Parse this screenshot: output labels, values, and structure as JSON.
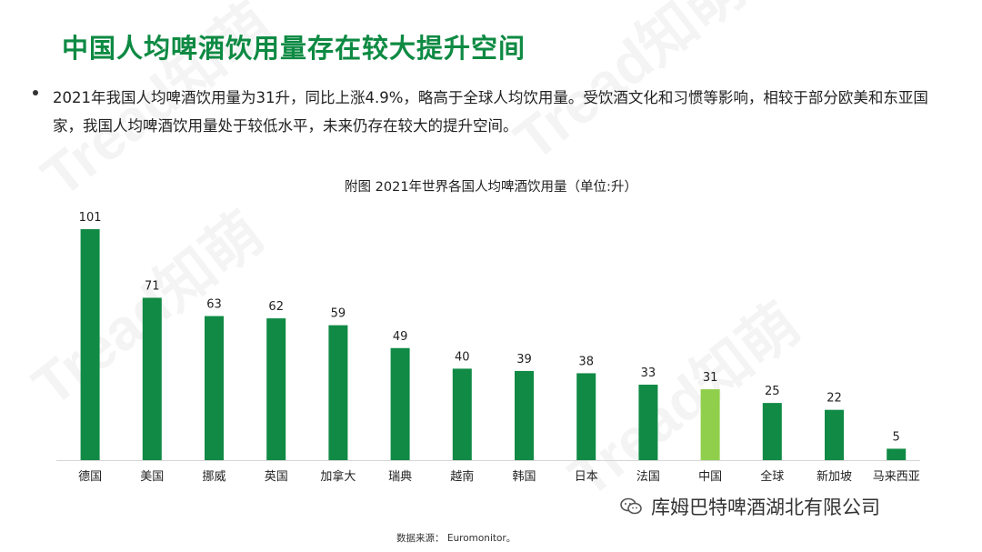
{
  "title": "中国人均啤酒饮用量存在较大提升空间",
  "bullet": "2021年我国人均啤酒饮用量为31升，同比上涨4.9%，略高于全球人均饮用量。受饮酒文化和习惯等影响，相较于部分欧美和东亚国家，我国人均啤酒饮用量处于较低水平，未来仍存在较大的提升空间。",
  "watermark_text": "Tread知萌",
  "account_label": "库姆巴特啤酒湖北有限公司",
  "source_label": "数据来源： Euromonitor。",
  "colors": {
    "title": "#0e8a43",
    "bar": "#108a45",
    "bar_highlight": "#8fcf4b"
  },
  "chart_data": {
    "type": "bar",
    "title": "附图 2021年世界各国人均啤酒饮用量（单位:升）",
    "categories": [
      "德国",
      "美国",
      "挪威",
      "英国",
      "加拿大",
      "瑞典",
      "越南",
      "韩国",
      "日本",
      "法国",
      "中国",
      "全球",
      "新加坡",
      "马来西亚"
    ],
    "values": [
      101,
      71,
      63,
      62,
      59,
      49,
      40,
      39,
      38,
      33,
      31,
      25,
      22,
      5
    ],
    "highlight": "中国",
    "ylim": [
      0,
      101
    ],
    "grid": false,
    "legend": "none"
  }
}
